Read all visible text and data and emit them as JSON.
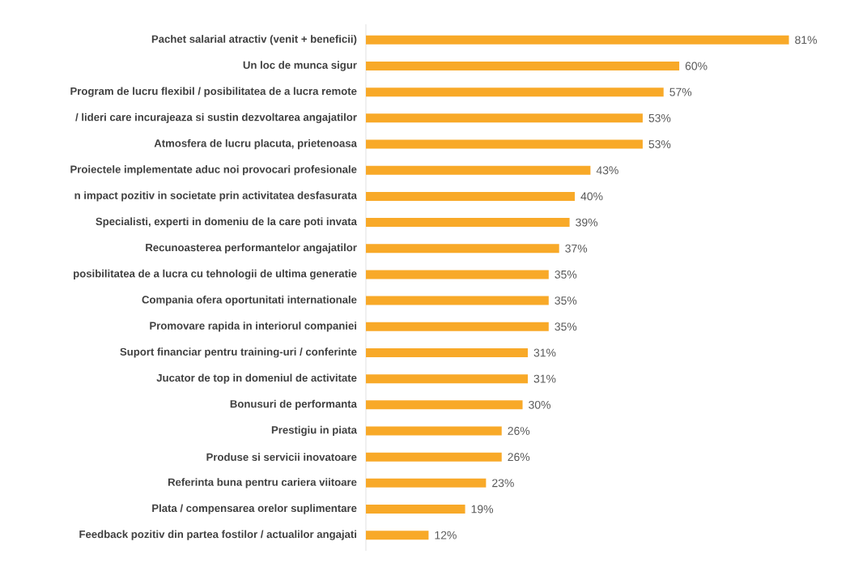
{
  "chart_data": {
    "type": "bar",
    "orientation": "horizontal",
    "categories": [
      "Pachet salarial atractiv (venit + beneficii)",
      "Un loc de munca sigur",
      "Program de lucru flexibil / posibilitatea de a lucra remote",
      "/ lideri care incurajeaza si sustin dezvoltarea angajatilor",
      "Atmosfera de lucru placuta, prietenoasa",
      "Proiectele implementate aduc noi provocari profesionale",
      "n impact pozitiv in societate prin activitatea desfasurata",
      "Specialisti, experti in domeniu de la care poti invata",
      "Recunoasterea performantelor angajatilor",
      "posibilitatea de a lucra cu tehnologii de ultima generatie",
      "Compania ofera oportunitati internationale",
      "Promovare rapida in interiorul companiei",
      "Suport financiar pentru training-uri / conferinte",
      "Jucator de top in domeniul de activitate",
      "Bonusuri de performanta",
      "Prestigiu in piata",
      "Produse si servicii inovatoare",
      "Referinta buna pentru cariera viitoare",
      "Plata / compensarea orelor suplimentare",
      "Feedback pozitiv din partea fostilor / actualilor angajati"
    ],
    "values": [
      81,
      60,
      57,
      53,
      53,
      43,
      40,
      39,
      37,
      35,
      35,
      35,
      31,
      31,
      30,
      26,
      26,
      23,
      19,
      12
    ],
    "value_labels": [
      "81%",
      "60%",
      "57%",
      "53%",
      "53%",
      "43%",
      "40%",
      "39%",
      "37%",
      "35%",
      "35%",
      "35%",
      "31%",
      "31%",
      "30%",
      "26%",
      "26%",
      "23%",
      "19%",
      "12%"
    ],
    "color": "#f8a928"
  }
}
